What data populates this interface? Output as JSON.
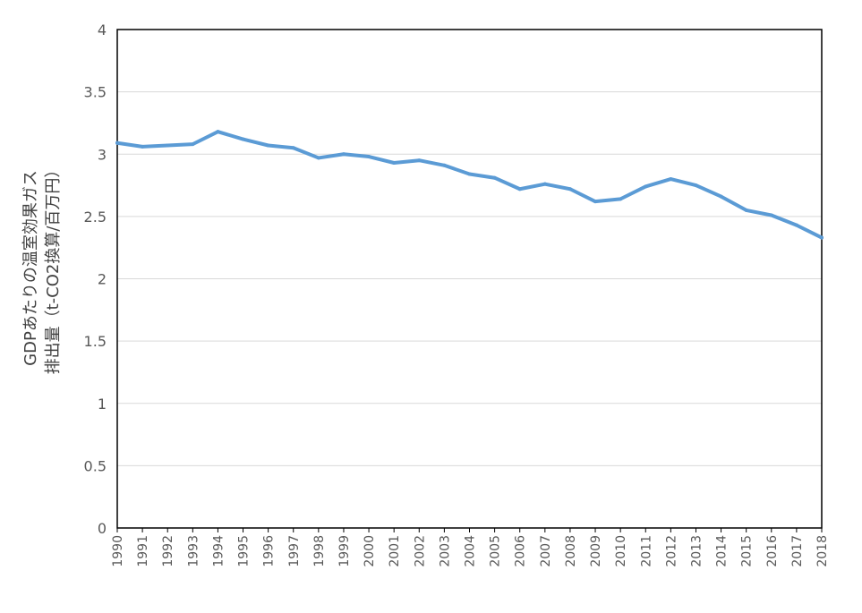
{
  "chart_data": {
    "type": "line",
    "title": "",
    "xlabel": "",
    "ylabel_lines": [
      "GDPあたりの温室効果ガス",
      "排出量（t-CO2換算/百万円）"
    ],
    "ylim": [
      0,
      4
    ],
    "y_ticks": [
      0,
      0.5,
      1,
      1.5,
      2,
      2.5,
      3,
      3.5,
      4
    ],
    "y_tick_labels": [
      "0",
      "0.5",
      "1",
      "1.5",
      "2",
      "2.5",
      "3",
      "3.5",
      "4"
    ],
    "categories": [
      "1990",
      "1991",
      "1992",
      "1993",
      "1994",
      "1995",
      "1996",
      "1997",
      "1998",
      "1999",
      "2000",
      "2001",
      "2002",
      "2003",
      "2004",
      "2005",
      "2006",
      "2007",
      "2008",
      "2009",
      "2010",
      "2011",
      "2012",
      "2013",
      "2014",
      "2015",
      "2016",
      "2017",
      "2018"
    ],
    "series": [
      {
        "color": "#5B9BD5",
        "values": [
          3.09,
          3.06,
          3.07,
          3.08,
          3.18,
          3.12,
          3.07,
          3.05,
          2.97,
          3.0,
          2.98,
          2.93,
          2.95,
          2.91,
          2.84,
          2.81,
          2.72,
          2.76,
          2.72,
          2.62,
          2.64,
          2.74,
          2.8,
          2.75,
          2.66,
          2.55,
          2.51,
          2.43,
          2.33
        ]
      }
    ],
    "grid": true,
    "legend": "none"
  }
}
